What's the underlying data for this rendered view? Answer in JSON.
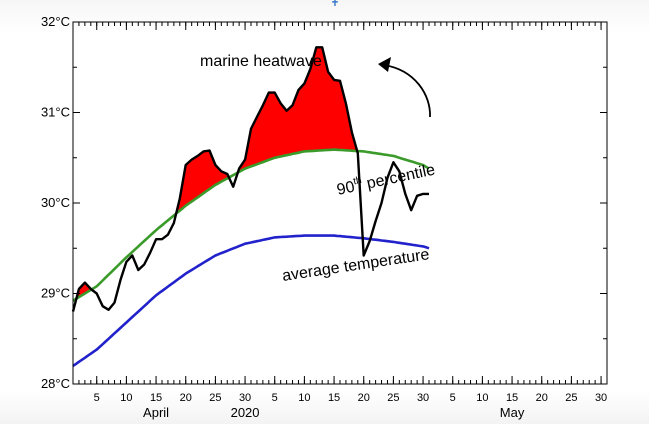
{
  "chart_data": {
    "type": "line",
    "title": "",
    "xlabel": "",
    "ylabel": "",
    "ylim": [
      28,
      32
    ],
    "xlim": [
      1,
      91
    ],
    "yticks": [
      {
        "value": 28,
        "label": "28°C"
      },
      {
        "value": 29,
        "label": "29°C"
      },
      {
        "value": 30,
        "label": "30°C"
      },
      {
        "value": 31,
        "label": "31°C"
      },
      {
        "value": 32,
        "label": "32°C"
      }
    ],
    "xticks": [
      {
        "x": 5,
        "label": "5"
      },
      {
        "x": 10,
        "label": "10"
      },
      {
        "x": 15,
        "label": "15"
      },
      {
        "x": 20,
        "label": "20"
      },
      {
        "x": 25,
        "label": "25"
      },
      {
        "x": 30,
        "label": "30"
      },
      {
        "x": 35,
        "label": "5"
      },
      {
        "x": 40,
        "label": "10"
      },
      {
        "x": 45,
        "label": "15"
      },
      {
        "x": 50,
        "label": "20"
      },
      {
        "x": 55,
        "label": "25"
      },
      {
        "x": 60,
        "label": "30"
      },
      {
        "x": 65,
        "label": "5"
      },
      {
        "x": 70,
        "label": "10"
      },
      {
        "x": 75,
        "label": "15"
      },
      {
        "x": 80,
        "label": "20"
      },
      {
        "x": 85,
        "label": "25"
      },
      {
        "x": 90,
        "label": "30"
      }
    ],
    "month_labels": [
      {
        "x": 15,
        "label": "April"
      },
      {
        "x": 30,
        "label": "2020"
      },
      {
        "x": 75,
        "label": "May"
      }
    ],
    "series": [
      {
        "name": "",
        "role": "observed",
        "color": "#000000",
        "x": [
          1,
          2,
          3,
          4,
          5,
          6,
          7,
          8,
          9,
          10,
          11,
          12,
          13,
          14,
          15,
          16,
          17,
          18,
          19,
          20,
          21,
          22,
          23,
          24,
          25,
          26,
          27,
          28,
          29,
          30,
          31,
          32,
          33,
          34,
          35,
          36,
          37,
          38,
          39,
          40,
          41,
          42,
          43,
          44,
          45,
          46,
          47,
          48,
          49,
          50,
          51,
          52,
          53,
          54,
          55,
          56,
          57,
          58,
          59,
          60,
          61
        ],
        "y": [
          28.8,
          29.05,
          29.12,
          29.05,
          29.0,
          28.86,
          28.82,
          28.9,
          29.15,
          29.35,
          29.42,
          29.26,
          29.32,
          29.45,
          29.6,
          29.6,
          29.65,
          29.78,
          30.05,
          30.42,
          30.48,
          30.52,
          30.57,
          30.58,
          30.42,
          30.35,
          30.32,
          30.18,
          30.38,
          30.48,
          30.82,
          30.95,
          31.08,
          31.22,
          31.22,
          31.1,
          31.02,
          31.08,
          31.25,
          31.32,
          31.48,
          31.72,
          31.72,
          31.45,
          31.36,
          31.35,
          31.1,
          30.78,
          30.55,
          29.42,
          29.58,
          29.8,
          30.0,
          30.28,
          30.45,
          30.35,
          30.1,
          29.92,
          30.08,
          30.1,
          30.1
        ]
      },
      {
        "name": "90th percentile",
        "role": "threshold",
        "color": "#3a9a2a",
        "x": [
          1,
          5,
          10,
          15,
          20,
          25,
          30,
          35,
          40,
          45,
          50,
          55,
          60,
          61
        ],
        "y": [
          28.92,
          29.08,
          29.4,
          29.7,
          29.97,
          30.2,
          30.38,
          30.5,
          30.57,
          30.59,
          30.57,
          30.52,
          30.42,
          30.38
        ]
      },
      {
        "name": "average temperature",
        "role": "climatology",
        "color": "#2222cc",
        "x": [
          1,
          5,
          10,
          15,
          20,
          25,
          30,
          35,
          40,
          45,
          50,
          55,
          60,
          61
        ],
        "y": [
          28.2,
          28.38,
          28.68,
          28.98,
          29.22,
          29.42,
          29.55,
          29.62,
          29.64,
          29.64,
          29.61,
          29.57,
          29.52,
          29.5
        ]
      }
    ],
    "fill": {
      "color": "#ff0000",
      "description_label": "marine heatwave"
    },
    "annotations": [
      {
        "text": "marine heatwave",
        "kind": "fill-label"
      },
      {
        "text": "90",
        "sup": "th",
        "rest": " percentile",
        "kind": "line-label"
      },
      {
        "text": "average temperature",
        "kind": "line-label"
      }
    ],
    "grid": false,
    "legend": "none"
  }
}
